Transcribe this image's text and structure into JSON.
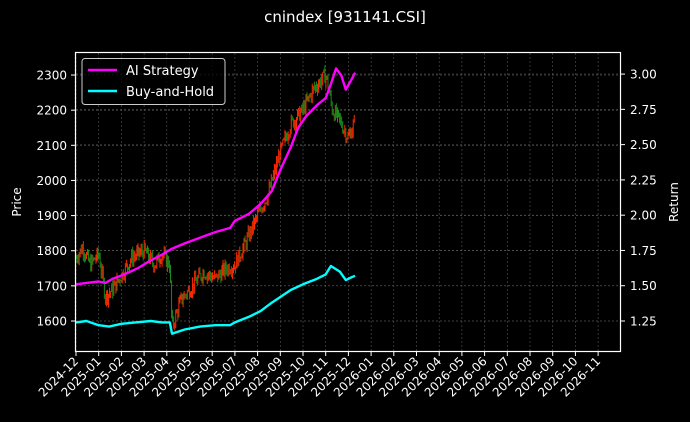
{
  "title": "cnindex [931141.CSI]",
  "colors": {
    "background": "#000000",
    "frame": "#ffffff",
    "grid": "#555555",
    "ai_strategy": "#ff00ff",
    "buy_and_hold": "#00ffff",
    "candle_up": "#ff2a00",
    "candle_down": "#1a8a1a"
  },
  "chart_data": {
    "type": "line",
    "title": "cnindex [931141.CSI]",
    "xlabel": "",
    "ylabel": "Price",
    "ylabel_right": "Return",
    "grid": true,
    "legend_position": "upper left",
    "legend": [
      "AI Strategy",
      "Buy-and-Hold"
    ],
    "x_ticks": [
      "2024-12",
      "2025-01",
      "2025-02",
      "2025-03",
      "2025-04",
      "2025-05",
      "2025-06",
      "2025-07",
      "2025-08",
      "2025-09",
      "2025-10",
      "2025-11",
      "2025-12",
      "2026-01",
      "2026-02",
      "2026-03",
      "2026-04",
      "2026-05",
      "2026-06",
      "2026-07",
      "2026-08",
      "2026-09",
      "2026-10",
      "2026-11"
    ],
    "y_ticks_left": [
      1600,
      1700,
      1800,
      1900,
      2000,
      2100,
      2200,
      2300
    ],
    "y_ticks_right": [
      "1.25",
      "1.50",
      "1.75",
      "2.00",
      "2.25",
      "2.50",
      "2.75",
      "3.00"
    ],
    "ylim_left": [
      1520,
      2365
    ],
    "ylim_right": [
      1.03,
      3.12
    ],
    "series": [
      {
        "name": "AI Strategy",
        "axis": "right",
        "x": [
          "2024-12-01",
          "2024-12-15",
          "2025-01-01",
          "2025-01-10",
          "2025-01-20",
          "2025-02-05",
          "2025-02-25",
          "2025-03-10",
          "2025-03-25",
          "2025-04-07",
          "2025-04-25",
          "2025-05-15",
          "2025-06-05",
          "2025-06-25",
          "2025-07-01",
          "2025-07-20",
          "2025-08-05",
          "2025-08-20",
          "2025-09-01",
          "2025-09-15",
          "2025-09-25",
          "2025-10-05",
          "2025-10-20",
          "2025-11-01",
          "2025-11-08",
          "2025-11-15",
          "2025-11-22",
          "2025-11-28",
          "2025-12-05",
          "2025-12-10"
        ],
        "values": [
          1.51,
          1.52,
          1.53,
          1.52,
          1.55,
          1.58,
          1.63,
          1.68,
          1.72,
          1.76,
          1.8,
          1.84,
          1.88,
          1.91,
          1.96,
          2.01,
          2.08,
          2.17,
          2.32,
          2.48,
          2.62,
          2.7,
          2.78,
          2.83,
          2.93,
          3.04,
          2.99,
          2.89,
          2.96,
          3.01
        ]
      },
      {
        "name": "Buy-and-Hold",
        "axis": "right",
        "x": [
          "2024-12-01",
          "2024-12-15",
          "2025-01-01",
          "2025-01-15",
          "2025-02-01",
          "2025-02-20",
          "2025-03-10",
          "2025-03-25",
          "2025-04-05",
          "2025-04-08",
          "2025-04-25",
          "2025-05-15",
          "2025-06-05",
          "2025-06-25",
          "2025-07-01",
          "2025-07-20",
          "2025-08-05",
          "2025-08-20",
          "2025-09-01",
          "2025-09-15",
          "2025-10-01",
          "2025-10-20",
          "2025-11-01",
          "2025-11-08",
          "2025-11-20",
          "2025-11-28",
          "2025-12-05",
          "2025-12-10"
        ],
        "values": [
          1.24,
          1.25,
          1.22,
          1.21,
          1.23,
          1.24,
          1.25,
          1.24,
          1.24,
          1.16,
          1.19,
          1.21,
          1.22,
          1.22,
          1.24,
          1.28,
          1.32,
          1.38,
          1.42,
          1.47,
          1.51,
          1.55,
          1.58,
          1.64,
          1.6,
          1.54,
          1.56,
          1.57
        ]
      },
      {
        "name": "Price (candles)",
        "axis": "left",
        "x": [
          "2024-12-01",
          "2024-12-10",
          "2024-12-20",
          "2025-01-01",
          "2025-01-10",
          "2025-01-20",
          "2025-02-01",
          "2025-02-15",
          "2025-03-01",
          "2025-03-15",
          "2025-03-25",
          "2025-04-05",
          "2025-04-08",
          "2025-04-20",
          "2025-05-05",
          "2025-05-20",
          "2025-06-05",
          "2025-06-20",
          "2025-07-01",
          "2025-07-15",
          "2025-08-01",
          "2025-08-15",
          "2025-09-01",
          "2025-09-15",
          "2025-10-01",
          "2025-10-15",
          "2025-11-01",
          "2025-11-10",
          "2025-11-20",
          "2025-12-01",
          "2025-12-10"
        ],
        "values": [
          1780,
          1810,
          1760,
          1790,
          1670,
          1690,
          1730,
          1780,
          1800,
          1760,
          1790,
          1760,
          1580,
          1660,
          1700,
          1740,
          1720,
          1750,
          1760,
          1820,
          1900,
          1960,
          2080,
          2160,
          2200,
          2260,
          2300,
          2200,
          2170,
          2120,
          2170
        ]
      }
    ]
  }
}
